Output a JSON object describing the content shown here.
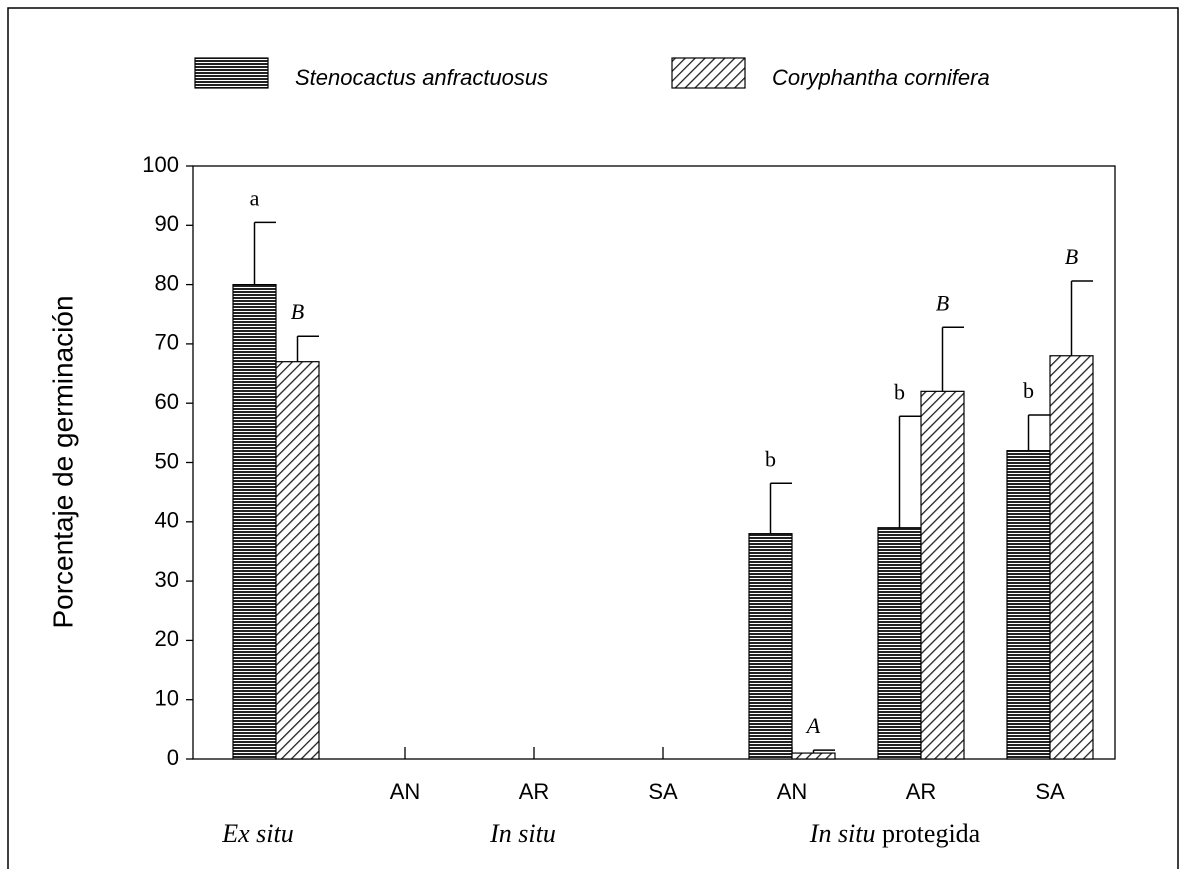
{
  "chart_data": {
    "type": "bar",
    "ylabel": "Porcentaje  de  germinación",
    "categories": [
      null,
      "AN",
      "AR",
      "SA",
      "AN",
      "AR",
      "SA"
    ],
    "groups": [
      {
        "label": "Ex situ"
      },
      {
        "label": "In situ"
      },
      {
        "label": "In situ",
        "suffix": "protegida"
      }
    ],
    "series": [
      {
        "name": "Stenocactus anfractuosus",
        "color": "#222222",
        "pattern": "horizontal",
        "values": [
          80,
          0,
          0,
          0,
          38,
          39,
          52
        ],
        "errors": [
          10.5,
          null,
          null,
          null,
          8.5,
          18.8,
          6
        ],
        "annotations": [
          "a",
          null,
          null,
          null,
          "b",
          "b",
          "b"
        ]
      },
      {
        "name": "Coryphantha cornifera",
        "color": "#222222",
        "pattern": "diagonal",
        "values": [
          67,
          0,
          0,
          0,
          1,
          62,
          68
        ],
        "errors": [
          4.3,
          null,
          null,
          null,
          0.5,
          10.8,
          12.6
        ],
        "annotations": [
          "B",
          null,
          null,
          null,
          "A",
          "B",
          "B"
        ]
      }
    ],
    "ylim": [
      0,
      100
    ],
    "yticks": [
      0,
      10,
      20,
      30,
      40,
      50,
      60,
      70,
      80,
      90,
      100
    ],
    "legend": "top"
  }
}
